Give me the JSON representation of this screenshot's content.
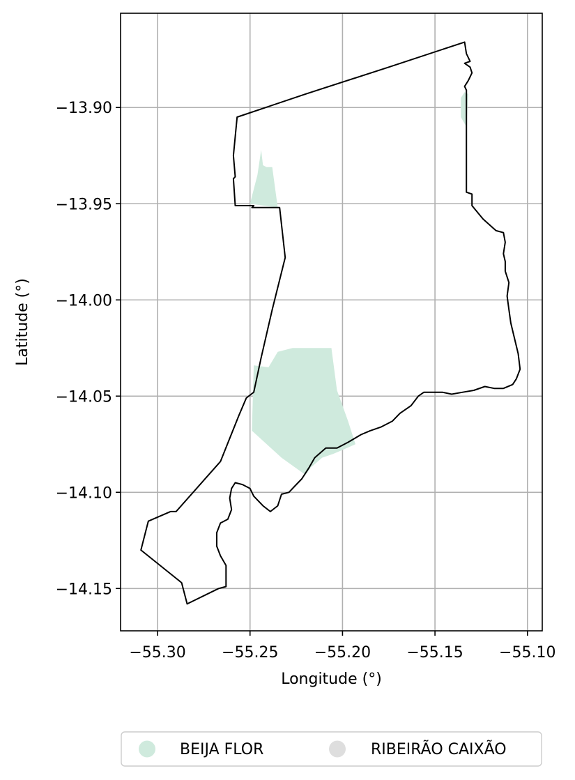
{
  "chart_data": {
    "type": "map",
    "xlabel": "Longitude (°)",
    "ylabel": "Latitude (°)",
    "xlim": [
      -55.32,
      -55.092
    ],
    "ylim": [
      -14.172,
      -13.851
    ],
    "grid": true,
    "x_ticks": [
      {
        "value": -55.3,
        "label": "−55.30"
      },
      {
        "value": -55.25,
        "label": "−55.25"
      },
      {
        "value": -55.2,
        "label": "−55.20"
      },
      {
        "value": -55.15,
        "label": "−55.15"
      },
      {
        "value": -55.1,
        "label": "−55.10"
      }
    ],
    "y_ticks": [
      {
        "value": -13.9,
        "label": "−13.90"
      },
      {
        "value": -13.95,
        "label": "−13.95"
      },
      {
        "value": -14.0,
        "label": "−14.00"
      },
      {
        "value": -14.05,
        "label": "−14.05"
      },
      {
        "value": -14.1,
        "label": "−14.10"
      },
      {
        "value": -14.15,
        "label": "−14.15"
      }
    ],
    "legend": {
      "placement": "bottom-center",
      "entries": [
        {
          "label": "BEIJA FLOR",
          "color": "#cfeadd"
        },
        {
          "label": "RIBEIRÃO CAIXÃO",
          "color": "#dedede"
        }
      ]
    },
    "boundary": {
      "stroke": "#000000",
      "coordinates": [
        [
          -55.134,
          -13.866
        ],
        [
          -55.133,
          -13.872
        ],
        [
          -55.131,
          -13.876
        ],
        [
          -55.134,
          -13.877
        ],
        [
          -55.131,
          -13.879
        ],
        [
          -55.13,
          -13.882
        ],
        [
          -55.132,
          -13.886
        ],
        [
          -55.134,
          -13.889
        ],
        [
          -55.133,
          -13.891
        ],
        [
          -55.133,
          -13.896
        ],
        [
          -55.133,
          -13.92
        ],
        [
          -55.133,
          -13.944
        ],
        [
          -55.13,
          -13.945
        ],
        [
          -55.13,
          -13.951
        ],
        [
          -55.124,
          -13.958
        ],
        [
          -55.117,
          -13.964
        ],
        [
          -55.113,
          -13.965
        ],
        [
          -55.112,
          -13.97
        ],
        [
          -55.113,
          -13.976
        ],
        [
          -55.112,
          -13.98
        ],
        [
          -55.112,
          -13.985
        ],
        [
          -55.11,
          -13.991
        ],
        [
          -55.111,
          -13.998
        ],
        [
          -55.11,
          -14.005
        ],
        [
          -55.109,
          -14.012
        ],
        [
          -55.107,
          -14.02
        ],
        [
          -55.105,
          -14.028
        ],
        [
          -55.104,
          -14.036
        ],
        [
          -55.106,
          -14.041
        ],
        [
          -55.108,
          -14.044
        ],
        [
          -55.113,
          -14.046
        ],
        [
          -55.118,
          -14.046
        ],
        [
          -55.123,
          -14.045
        ],
        [
          -55.129,
          -14.047
        ],
        [
          -55.135,
          -14.048
        ],
        [
          -55.141,
          -14.049
        ],
        [
          -55.146,
          -14.048
        ],
        [
          -55.15,
          -14.048
        ],
        [
          -55.156,
          -14.048
        ],
        [
          -55.159,
          -14.05
        ],
        [
          -55.163,
          -14.055
        ],
        [
          -55.169,
          -14.059
        ],
        [
          -55.173,
          -14.063
        ],
        [
          -55.179,
          -14.066
        ],
        [
          -55.185,
          -14.068
        ],
        [
          -55.19,
          -14.07
        ],
        [
          -55.197,
          -14.074
        ],
        [
          -55.203,
          -14.077
        ],
        [
          -55.209,
          -14.077
        ],
        [
          -55.215,
          -14.082
        ],
        [
          -55.218,
          -14.087
        ],
        [
          -55.222,
          -14.093
        ],
        [
          -55.226,
          -14.097
        ],
        [
          -55.229,
          -14.1
        ],
        [
          -55.233,
          -14.101
        ],
        [
          -55.235,
          -14.107
        ],
        [
          -55.239,
          -14.11
        ],
        [
          -55.243,
          -14.107
        ],
        [
          -55.248,
          -14.102
        ],
        [
          -55.25,
          -14.098
        ],
        [
          -55.254,
          -14.096
        ],
        [
          -55.258,
          -14.095
        ],
        [
          -55.26,
          -14.098
        ],
        [
          -55.261,
          -14.103
        ],
        [
          -55.26,
          -14.109
        ],
        [
          -55.262,
          -14.114
        ],
        [
          -55.266,
          -14.116
        ],
        [
          -55.268,
          -14.121
        ],
        [
          -55.268,
          -14.128
        ],
        [
          -55.266,
          -14.133
        ],
        [
          -55.263,
          -14.138
        ],
        [
          -55.263,
          -14.145
        ],
        [
          -55.263,
          -14.149
        ],
        [
          -55.267,
          -14.15
        ],
        [
          -55.284,
          -14.158
        ],
        [
          -55.287,
          -14.147
        ],
        [
          -55.309,
          -14.13
        ],
        [
          -55.305,
          -14.115
        ],
        [
          -55.293,
          -14.11
        ],
        [
          -55.29,
          -14.11
        ],
        [
          -55.266,
          -14.084
        ],
        [
          -55.256,
          -14.06
        ],
        [
          -55.252,
          -14.051
        ],
        [
          -55.248,
          -14.048
        ],
        [
          -55.244,
          -14.03
        ],
        [
          -55.238,
          -14.005
        ],
        [
          -55.231,
          -13.978
        ],
        [
          -55.234,
          -13.952
        ],
        [
          -55.249,
          -13.952
        ],
        [
          -55.248,
          -13.951
        ],
        [
          -55.248,
          -13.951
        ],
        [
          -55.255,
          -13.951
        ],
        [
          -55.256,
          -13.951
        ],
        [
          -55.258,
          -13.951
        ],
        [
          -55.258,
          -13.951
        ],
        [
          -55.258,
          -13.951
        ],
        [
          -55.259,
          -13.937
        ],
        [
          -55.258,
          -13.936
        ],
        [
          -55.259,
          -13.925
        ],
        [
          -55.257,
          -13.905
        ],
        [
          -55.22,
          -13.893
        ],
        [
          -55.175,
          -13.879
        ],
        [
          -55.134,
          -13.866
        ]
      ]
    },
    "regions": [
      {
        "name": "BEIJA FLOR",
        "color": "#cfeadd",
        "polygons": [
          [
            [
              -55.249,
              -14.068
            ],
            [
              -55.248,
              -14.034
            ],
            [
              -55.24,
              -14.035
            ],
            [
              -55.235,
              -14.027
            ],
            [
              -55.227,
              -14.025
            ],
            [
              -55.218,
              -14.025
            ],
            [
              -55.206,
              -14.025
            ],
            [
              -55.203,
              -14.047
            ],
            [
              -55.197,
              -14.063
            ],
            [
              -55.193,
              -14.075
            ],
            [
              -55.2,
              -14.078
            ],
            [
              -55.205,
              -14.08
            ],
            [
              -55.211,
              -14.082
            ],
            [
              -55.217,
              -14.087
            ],
            [
              -55.22,
              -14.091
            ],
            [
              -55.233,
              -14.082
            ],
            [
              -55.249,
              -14.068
            ]
          ],
          [
            [
              -55.25,
              -13.95
            ],
            [
              -55.246,
              -13.935
            ],
            [
              -55.244,
              -13.922
            ],
            [
              -55.243,
              -13.93
            ],
            [
              -55.241,
              -13.931
            ],
            [
              -55.238,
              -13.931
            ],
            [
              -55.235,
              -13.952
            ],
            [
              -55.25,
              -13.95
            ]
          ],
          [
            [
              -55.136,
              -13.895
            ],
            [
              -55.134,
              -13.892
            ],
            [
              -55.132,
              -13.893
            ],
            [
              -55.133,
              -13.91
            ],
            [
              -55.136,
              -13.905
            ],
            [
              -55.136,
              -13.895
            ]
          ]
        ]
      }
    ]
  }
}
